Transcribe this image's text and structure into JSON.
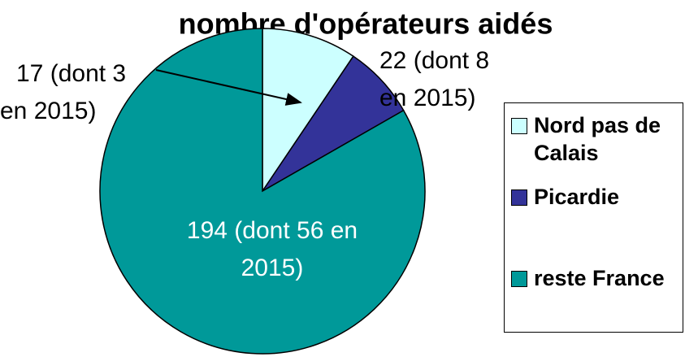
{
  "chart_data": {
    "type": "pie",
    "title": "nombre d'opérateurs aidés",
    "categories": [
      "Nord pas de Calais",
      "Picardie",
      "reste France"
    ],
    "values": [
      22,
      17,
      194
    ],
    "value_labels": [
      [
        "22 (dont 8",
        "en 2015)"
      ],
      [
        "17 (dont 3",
        "en 2015)"
      ],
      [
        "194 (dont 56 en",
        "2015)"
      ]
    ],
    "colors": [
      "#ccffff",
      "#333399",
      "#009999"
    ],
    "legend": "right"
  }
}
